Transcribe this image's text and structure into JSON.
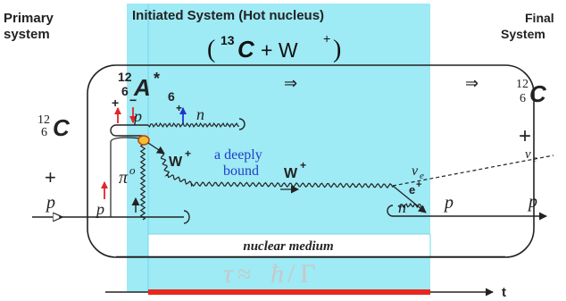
{
  "colors": {
    "hot_region": "#9eeaf5",
    "arrow_red": "#e0262a",
    "arrow_blue": "#2233cc",
    "text_blue": "#1f3fc8",
    "time_bar_red": "#e8281e",
    "tau_gray": "#c8c8c8",
    "line": "#222222"
  },
  "headers": {
    "primary_line1": "Primary",
    "primary_line2": "system",
    "initiated": "Initiated System (Hot nucleus)",
    "final_line1": "Final",
    "final_line2": "System"
  },
  "formula": {
    "open": "(",
    "mass": "13",
    "element": "C",
    "plus": "+ W",
    "sup": "+",
    "close": ")"
  },
  "left_nucleus": {
    "mass": "12",
    "charge": "6",
    "element": "C"
  },
  "plus_sign": "+",
  "proton_label": "p",
  "excited_nucleus": {
    "mass": "12",
    "charge": "6",
    "element": "A",
    "star": "*",
    "sub": "6"
  },
  "charges": {
    "plus": "+",
    "minus": "−",
    "blue_plus": "+"
  },
  "inner_labels": {
    "p_upper": "p",
    "n_upper": "n",
    "p_lower": "p",
    "pion": "π",
    "pion_sup": "o",
    "W_first": "W",
    "W_first_sup": "+",
    "W_second": "W",
    "W_second_sup": "+",
    "deeply_line1": "a deeply",
    "deeply_line2": "bound",
    "n_right": "n",
    "p_right": "p",
    "nu_label": "ν",
    "nu_sub": "e",
    "e_label": "e",
    "e_sup": "+",
    "arrow_right_1": "⇒",
    "arrow_right_2": "⇒"
  },
  "final_nucleus": {
    "mass": "12",
    "charge": "6",
    "element": "C"
  },
  "final_labels": {
    "plus": "+",
    "nu_label": "ν",
    "nu_sub": "e",
    "p_label": "p"
  },
  "nuclear_medium": "nuclear medium",
  "lifetime": {
    "tau": "τ",
    "approx": " ≈ ",
    "hbar": "ħ",
    "slash": "/",
    "gamma": "Γ"
  },
  "time_axis_label": "t"
}
